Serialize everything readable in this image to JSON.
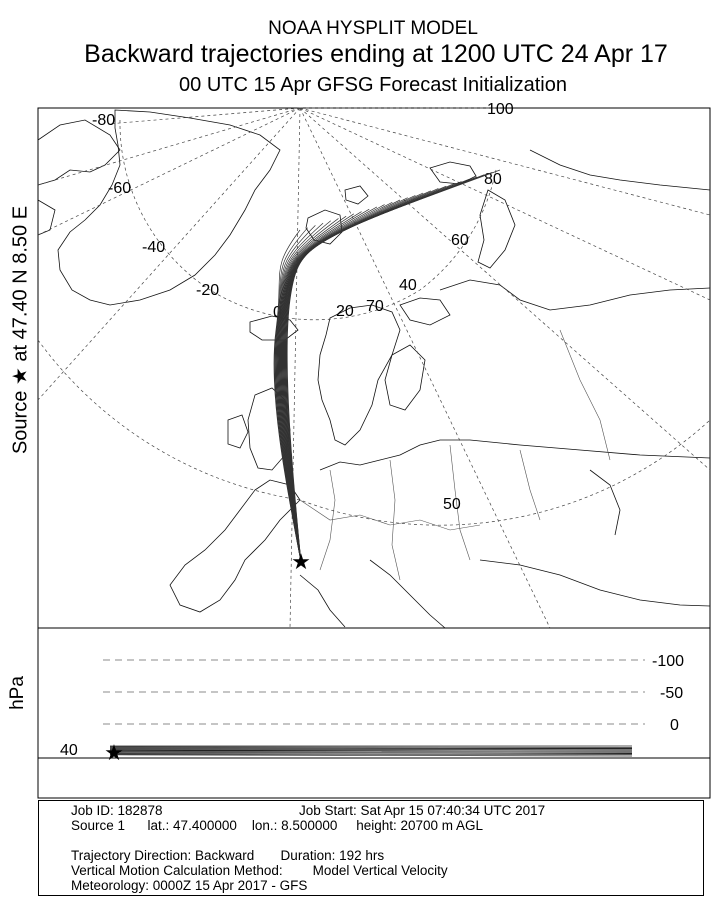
{
  "header": {
    "model": "NOAA HYSPLIT MODEL",
    "title": "Backward trajectories ending at 1200 UTC 24 Apr 17",
    "subtitle": "00 UTC 15 Apr    GFSG  Forecast Initialization"
  },
  "source_label": {
    "prefix": "Source",
    "suffix": "at    47.40 N    8.50 E",
    "star_glyph": "★"
  },
  "vertical_label": "hPa",
  "footer": {
    "job_id": "Job ID: 182878",
    "job_start": "Job Start: Sat Apr 15 07:40:34 UTC 2017",
    "source_line": "Source 1      lat.: 47.400000    lon.: 8.500000     height: 20700 m AGL",
    "direction": "Trajectory Direction: Backward       Duration: 192 hrs",
    "motion": "Vertical Motion Calculation Method:        Model Vertical Velocity",
    "meteorology": "Meteorology: 0000Z 15 Apr 2017 - GFS"
  },
  "chart_data": [
    {
      "type": "line",
      "title": "Backward trajectories ending at 1200 UTC 24 Apr 17",
      "map_projection": "polar stereographic (north polar region, Europe)",
      "source": {
        "lat": 47.4,
        "lon": 8.5
      },
      "longitude_labels": [
        "-80",
        "-60",
        "-40",
        "-20",
        "0",
        "20",
        "40",
        "60",
        "80",
        "100"
      ],
      "latitude_labels": [
        "70",
        "50"
      ],
      "trajectory_count": 27,
      "description_of_paths": "All trajectories run north from the source over the North Sea / Norwegian Sea, curving east across Svalbard toward Franz Josef Land / Novaya Zemlya region"
    },
    {
      "type": "line",
      "ylabel": "hPa",
      "y_tick_labels": [
        "-100",
        "-50",
        "0"
      ],
      "left_label": "40",
      "note": "Vertical profile: all trajectories remain near the starting level for the full duration"
    }
  ]
}
